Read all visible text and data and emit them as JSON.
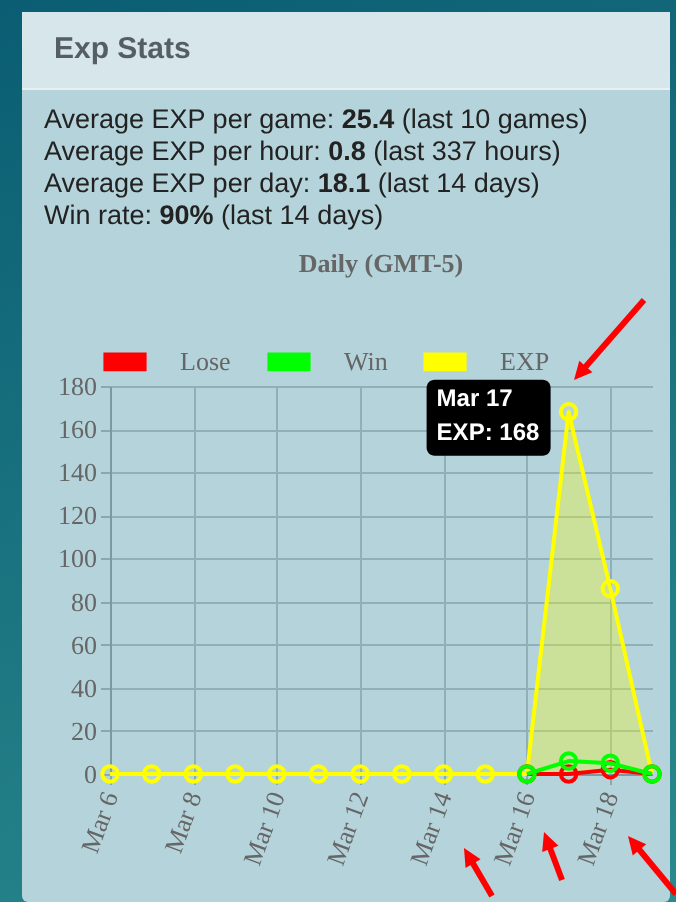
{
  "chart_data": {
    "type": "line",
    "title": "Exp Stats",
    "subtitle": "Daily (GMT-5)",
    "annotations": [
      "Average EXP per game: 25.4 (last 10 games)",
      "Average EXP per hour: 0.8 (last 337 hours)",
      "Average EXP per day: 18.1 (last 14 days)",
      "Win rate: 90% (last 14 days)",
      {
        "text": "Mar 17\nEXP: 168",
        "x": "--03-17",
        "y": 168
      }
    ],
    "x": [
      "--03-06",
      "--03-07",
      "--03-08",
      "--03-09",
      "--03-10",
      "--03-11",
      "--03-12",
      "--03-13",
      "--03-14",
      "--03-15",
      "--03-16",
      "--03-17",
      "--03-18",
      "--03-19"
    ],
    "xlim": [
      "--03-06",
      "--03-19"
    ],
    "xticks": [
      {
        "value": "--03-06",
        "label": "Mar 6"
      },
      {
        "value": "--03-08",
        "label": "Mar 8"
      },
      {
        "value": "--03-10",
        "label": "Mar 10"
      },
      {
        "value": "--03-12",
        "label": "Mar 12"
      },
      {
        "value": "--03-14",
        "label": "Mar 14"
      },
      {
        "value": "--03-16",
        "label": "Mar 16"
      },
      {
        "value": "--03-18",
        "label": "Mar 18"
      }
    ],
    "series": [
      {
        "name": "Lose",
        "color": "#ff0000",
        "values": [
          null,
          null,
          null,
          null,
          null,
          null,
          null,
          null,
          null,
          null,
          0,
          0,
          2,
          0
        ]
      },
      {
        "name": "Win",
        "color": "#00ff00",
        "values": [
          null,
          null,
          null,
          null,
          null,
          null,
          null,
          null,
          null,
          null,
          0,
          6,
          5,
          0
        ]
      },
      {
        "name": "EXP",
        "type": "area",
        "color": "#ffff00",
        "values": [
          0,
          0,
          0,
          0,
          0,
          0,
          0,
          0,
          0,
          0,
          0,
          168,
          86,
          0
        ]
      }
    ],
    "ylim": [
      0,
      180
    ],
    "yticks": [
      0,
      20,
      40,
      60,
      80,
      100,
      120,
      140,
      160,
      180
    ],
    "grid": true,
    "legend": "top",
    "marker": "circle"
  }
}
